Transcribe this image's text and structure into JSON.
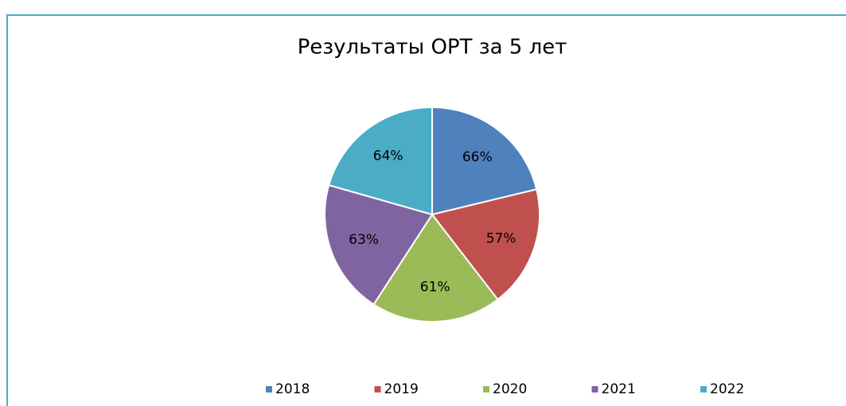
{
  "chart_data": {
    "type": "pie",
    "title": "Результаты ОРТ за 5 лет",
    "categories": [
      "2018",
      "2019",
      "2020",
      "2021",
      "2022"
    ],
    "values": [
      66,
      57,
      61,
      63,
      64
    ],
    "value_labels": [
      "66%",
      "57%",
      "61%",
      "63%",
      "64%"
    ],
    "colors": [
      "#4f81bd",
      "#c0504d",
      "#9bbb59",
      "#8064a2",
      "#4bacc6"
    ],
    "legend": "bottom"
  }
}
